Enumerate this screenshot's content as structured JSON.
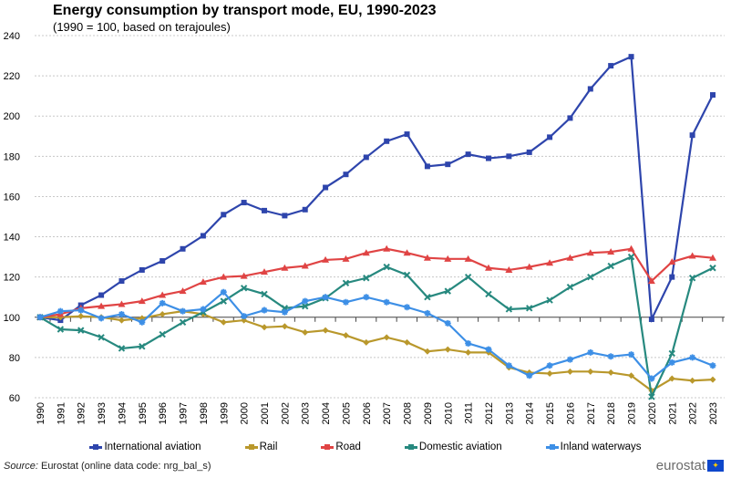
{
  "chart_data": {
    "type": "line",
    "title": "Energy consumption by transport mode, EU, 1990-2023",
    "subtitle": "(1990 = 100, based on terajoules)",
    "x": [
      "1990",
      "1991",
      "1992",
      "1993",
      "1994",
      "1995",
      "1996",
      "1997",
      "1998",
      "1999",
      "2000",
      "2001",
      "2002",
      "2003",
      "2004",
      "2005",
      "2006",
      "2007",
      "2008",
      "2009",
      "2010",
      "2011",
      "2012",
      "2013",
      "2014",
      "2015",
      "2016",
      "2017",
      "2018",
      "2019",
      "2020",
      "2021",
      "2022",
      "2023"
    ],
    "ylim": [
      60,
      240
    ],
    "yticks": [
      60,
      80,
      100,
      120,
      140,
      160,
      180,
      200,
      220,
      240
    ],
    "grid": true,
    "legend_position": "bottom",
    "series": [
      {
        "name": "International aviation",
        "color": "#2e45ac",
        "marker": "square",
        "values": [
          100,
          98.5,
          106,
          111,
          118,
          123.5,
          128,
          134,
          140.5,
          151,
          157,
          153,
          150.5,
          153.5,
          164.5,
          171,
          179.5,
          187.5,
          191,
          175,
          176,
          181,
          179,
          180,
          182,
          189.5,
          199,
          213.5,
          225,
          229.5,
          99,
          120,
          190.5,
          210.5
        ]
      },
      {
        "name": "Rail",
        "color": "#b9982c",
        "marker": "diamond",
        "values": [
          100,
          100,
          100.5,
          100,
          98.5,
          99.5,
          101.5,
          103,
          101.5,
          97.5,
          98.5,
          95,
          95.5,
          92.5,
          93.5,
          91,
          87.5,
          90,
          87.5,
          83,
          84,
          82.5,
          82.5,
          75,
          72.5,
          72,
          73,
          73,
          72.5,
          71,
          63.5,
          69.5,
          68.5,
          69
        ]
      },
      {
        "name": "Road",
        "color": "#e04444",
        "marker": "triangle",
        "values": [
          100,
          101.5,
          104.5,
          105.5,
          106.5,
          108,
          111,
          113,
          117.5,
          120,
          120.5,
          122.5,
          124.5,
          125.5,
          128.5,
          129,
          132,
          134,
          132,
          129.5,
          129,
          129,
          124.5,
          123.5,
          125,
          127,
          129.5,
          132,
          132.5,
          134,
          118,
          127.5,
          130.5,
          129.5
        ]
      },
      {
        "name": "Domestic aviation",
        "color": "#27897f",
        "marker": "x",
        "values": [
          100,
          94,
          93.5,
          90,
          84.5,
          85.5,
          91.5,
          97.5,
          102.5,
          108,
          114.5,
          111.5,
          104.5,
          105.5,
          109.5,
          117,
          119.5,
          125,
          121,
          110,
          113,
          120,
          111.5,
          104,
          104.5,
          108.5,
          115,
          120,
          125.5,
          130,
          60.5,
          82,
          119.5,
          124.5
        ]
      },
      {
        "name": "Inland waterways",
        "color": "#3d8fe6",
        "marker": "star",
        "values": [
          100,
          103,
          103.5,
          99.5,
          101.5,
          97.5,
          107,
          103,
          104,
          112.5,
          100.5,
          103.5,
          102.5,
          108,
          110,
          107.5,
          110,
          107.5,
          105,
          102,
          97,
          87,
          84,
          76,
          71,
          76,
          79,
          82.5,
          80.5,
          81.5,
          69.5,
          77.5,
          80,
          76
        ]
      }
    ]
  },
  "footer": {
    "source_label": "Source:",
    "source_text": " Eurostat (online data code: nrg_bal_s)",
    "logo": "eurostat"
  }
}
